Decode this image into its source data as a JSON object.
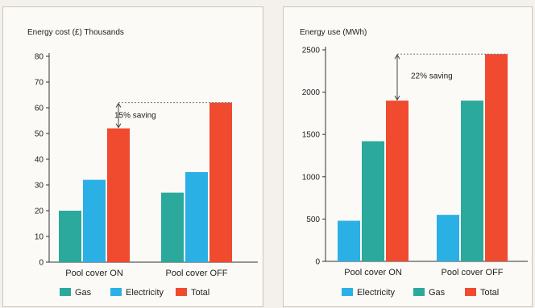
{
  "chart_data": [
    {
      "type": "bar",
      "title": "Energy cost (£) Thousands",
      "categories": [
        "Pool cover ON",
        "Pool cover OFF"
      ],
      "series": [
        {
          "name": "Gas",
          "values": [
            20,
            27
          ],
          "color": "#2aa99c"
        },
        {
          "name": "Electricity",
          "values": [
            32,
            35
          ],
          "color": "#2bb0e6"
        },
        {
          "name": "Total",
          "values": [
            52,
            62
          ],
          "color": "#f04a2f"
        }
      ],
      "yticks": [
        0,
        10,
        20,
        30,
        40,
        50,
        60,
        70,
        80
      ],
      "ylim": [
        0,
        80
      ],
      "annotation": {
        "text": "15% saving",
        "from_category": 0,
        "to_category": 1,
        "series": "Total"
      },
      "legend": "bottom"
    },
    {
      "type": "bar",
      "title": "Energy use (MWh)",
      "categories": [
        "Pool cover ON",
        "Pool cover OFF"
      ],
      "series": [
        {
          "name": "Electricity",
          "values": [
            480,
            550
          ],
          "color": "#2bb0e6"
        },
        {
          "name": "Gas",
          "values": [
            1420,
            1900
          ],
          "color": "#2aa99c"
        },
        {
          "name": "Total",
          "values": [
            1900,
            2450
          ],
          "color": "#f04a2f"
        }
      ],
      "yticks": [
        0,
        500,
        1000,
        1500,
        2000,
        2500
      ],
      "ylim": [
        0,
        2500
      ],
      "annotation": {
        "text": "22% saving",
        "from_category": 0,
        "to_category": 1,
        "series": "Total"
      },
      "legend": "bottom"
    }
  ]
}
